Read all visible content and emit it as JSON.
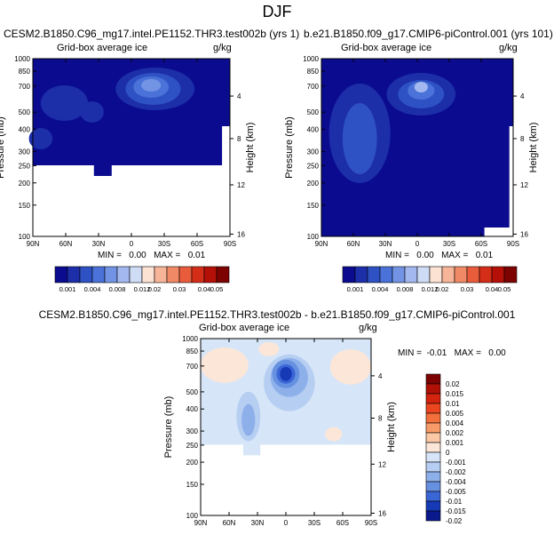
{
  "page_title": "DJF",
  "chart_data": [
    {
      "type": "heatmap",
      "title_left": "CESM2.B1850.C96_mg17.intel.PE1152.THR3.test002b (yrs 1)",
      "subtitle": "Grid-box average ice",
      "units": "g/kg",
      "ylabel": "Pressure (mb)",
      "ylabel_right": "Height (km)",
      "xticks": [
        "90N",
        "60N",
        "30N",
        "0",
        "30S",
        "60S",
        "90S"
      ],
      "yticks": [
        "100",
        "150",
        "200",
        "250",
        "300",
        "400",
        "500",
        "700",
        "850",
        "1000"
      ],
      "yticks_right": [
        "16",
        "12",
        "8",
        "4"
      ],
      "min_max_text": "MIN =   0.00   MAX =   0.01",
      "colorbar_labels": [
        "0.001",
        "0.004",
        "0.008",
        "0.012",
        "0.02",
        "0.03",
        "0.04",
        "0.05"
      ],
      "max_value": 0.01
    },
    {
      "type": "heatmap",
      "title_left": "b.e21.B1850.f09_g17.CMIP6-piControl.001 (yrs 101)",
      "subtitle": "Grid-box average ice",
      "units": "g/kg",
      "ylabel": "Pressure (mb)",
      "ylabel_right": "Height (km)",
      "xticks": [
        "90N",
        "60N",
        "30N",
        "0",
        "30S",
        "60S",
        "90S"
      ],
      "yticks": [
        "100",
        "150",
        "200",
        "250",
        "300",
        "400",
        "500",
        "700",
        "850",
        "1000"
      ],
      "yticks_right": [
        "16",
        "12",
        "8",
        "4"
      ],
      "min_max_text": "MIN =   0.00   MAX =   0.01",
      "colorbar_labels": [
        "0.001",
        "0.004",
        "0.008",
        "0.012",
        "0.02",
        "0.03",
        "0.04",
        "0.05"
      ],
      "max_value": 0.01
    },
    {
      "type": "heatmap",
      "title": "CESM2.B1850.C96_mg17.intel.PE1152.THR3.test002b - b.e21.B1850.f09_g17.CMIP6-piControl.001",
      "subtitle": "Grid-box average ice",
      "units": "g/kg",
      "ylabel": "Pressure (mb)",
      "ylabel_right": "Height (km)",
      "xticks": [
        "90N",
        "60N",
        "30N",
        "0",
        "30S",
        "60S",
        "90S"
      ],
      "yticks": [
        "100",
        "150",
        "200",
        "250",
        "300",
        "400",
        "500",
        "700",
        "850",
        "1000"
      ],
      "yticks_right": [
        "16",
        "12",
        "8",
        "4"
      ],
      "min_max_text": "MIN =  -0.01   MAX =   0.00",
      "colorbar_labels": [
        "0.02",
        "0.015",
        "0.01",
        "0.005",
        "0.004",
        "0.002",
        "0.001",
        "0",
        "-0.001",
        "-0.002",
        "-0.004",
        "-0.005",
        "-0.01",
        "-0.015",
        "-0.02"
      ],
      "min_value": -0.01,
      "max_value": 0.0
    }
  ],
  "colors": {
    "seq": [
      "#0b0b90",
      "#1c2ea8",
      "#2e52c4",
      "#4a72d8",
      "#7394e4",
      "#a2b8ee",
      "#cfdcf6",
      "#fbe2d2",
      "#f6b498",
      "#f08966",
      "#e85c3c",
      "#d42e18",
      "#b51008",
      "#7d0303"
    ],
    "div": [
      "#7d0303",
      "#b01005",
      "#d4230e",
      "#ec4620",
      "#f3703d",
      "#f89b69",
      "#fbc8a6",
      "#fce6d8",
      "#d6e6f8",
      "#b6cef2",
      "#8eb0ea",
      "#6690e0",
      "#3b66d6",
      "#163ab6",
      "#0a1a8c"
    ],
    "navy": "#0b0b90",
    "pale_blue": "#d6e6f8",
    "pale_peach": "#fce6d8"
  }
}
